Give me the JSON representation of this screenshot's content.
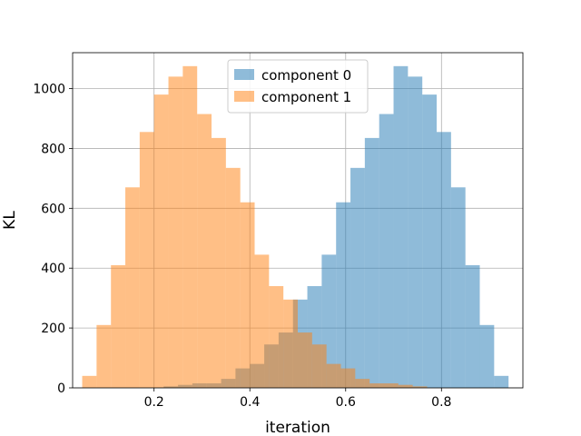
{
  "chart_data": {
    "type": "bar",
    "subtype": "overlaid-histogram",
    "title": "",
    "xlabel": "iteration",
    "ylabel": "KL",
    "xlim": [
      0.03,
      0.97
    ],
    "ylim": [
      0,
      1120
    ],
    "xticks": [
      0.2,
      0.4,
      0.6,
      0.8
    ],
    "xtick_labels": [
      "0.2",
      "0.4",
      "0.6",
      "0.8"
    ],
    "yticks": [
      0,
      200,
      400,
      600,
      800,
      1000
    ],
    "ytick_labels": [
      "0",
      "200",
      "400",
      "600",
      "800",
      "1000"
    ],
    "grid": true,
    "legend_position": "top-center",
    "series": [
      {
        "name": "component 0",
        "color": "#1f77b4",
        "alpha": 0.5,
        "bin_edges": [
          0.22,
          0.25,
          0.28,
          0.31,
          0.34,
          0.37,
          0.4,
          0.43,
          0.46,
          0.49,
          0.52,
          0.55,
          0.58,
          0.61,
          0.64,
          0.67,
          0.7,
          0.73,
          0.76,
          0.79,
          0.82,
          0.85,
          0.88,
          0.91,
          0.94
        ],
        "counts": [
          5,
          10,
          15,
          15,
          30,
          65,
          80,
          145,
          185,
          295,
          340,
          445,
          620,
          735,
          835,
          915,
          1075,
          1040,
          980,
          855,
          670,
          410,
          210,
          40
        ]
      },
      {
        "name": "component 1",
        "color": "#ff7f0e",
        "alpha": 0.5,
        "bin_edges": [
          0.05,
          0.08,
          0.11,
          0.14,
          0.17,
          0.2,
          0.23,
          0.26,
          0.29,
          0.32,
          0.35,
          0.38,
          0.41,
          0.44,
          0.47,
          0.5,
          0.53,
          0.56,
          0.59,
          0.62,
          0.65,
          0.68,
          0.71,
          0.74,
          0.77
        ],
        "counts": [
          40,
          210,
          410,
          670,
          855,
          980,
          1040,
          1075,
          915,
          835,
          735,
          620,
          445,
          340,
          295,
          185,
          145,
          80,
          65,
          30,
          15,
          15,
          10,
          5
        ]
      }
    ]
  }
}
